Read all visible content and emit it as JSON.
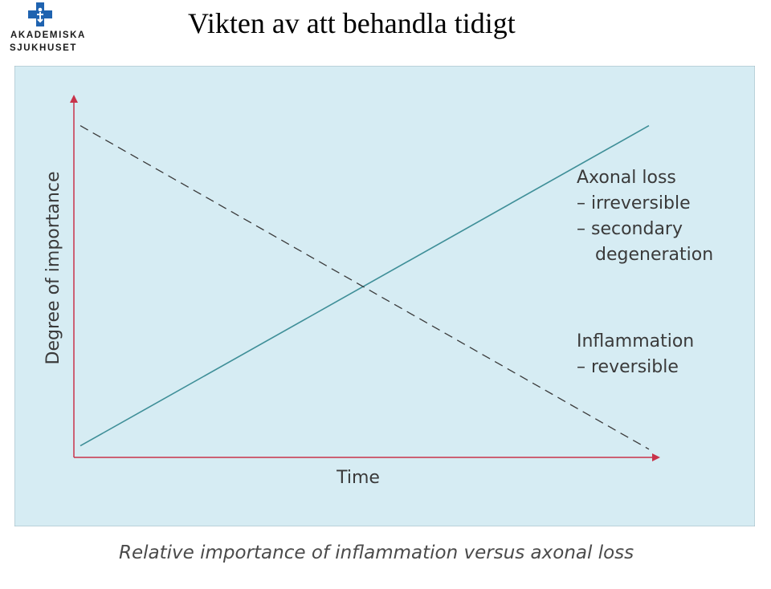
{
  "header": {
    "logo_line1": "AKADEMISKA",
    "logo_line2": "SJUKHUSET",
    "title": "Vikten av att behandla tidigt"
  },
  "caption": "Relative importance of inflammation versus axonal loss",
  "colors": {
    "panel_bg": "#d6ecf3",
    "axis": "#c8334a",
    "axonal_line": "#3f8f98",
    "inflammation_line": "#3a3a3a",
    "logo_blue": "#1f63b0"
  },
  "chart_data": {
    "type": "line",
    "xlabel": "Time",
    "ylabel": "Degree of importance",
    "xlim": [
      0,
      1
    ],
    "ylim": [
      0,
      1
    ],
    "grid": false,
    "series": [
      {
        "name": "Axonal loss",
        "annotation": [
          "Axonal loss",
          "– irreversible",
          "– secondary",
          "degeneration"
        ],
        "style": "solid",
        "x": [
          0,
          1
        ],
        "y": [
          0.02,
          0.97
        ]
      },
      {
        "name": "Inflammation",
        "annotation": [
          "Inflammation",
          "– reversible"
        ],
        "style": "dashed",
        "x": [
          0,
          1
        ],
        "y": [
          0.97,
          0.01
        ]
      }
    ]
  }
}
